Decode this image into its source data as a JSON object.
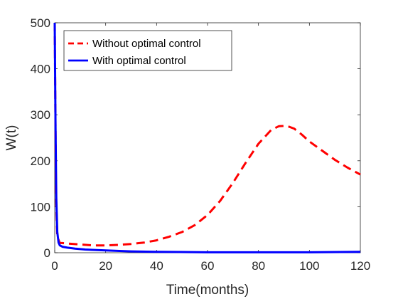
{
  "chart_data": {
    "type": "line",
    "title": "",
    "xlabel": "Time(months)",
    "ylabel": "W(t)",
    "xlim": [
      0,
      120
    ],
    "ylim": [
      0,
      500
    ],
    "xticks": [
      0,
      20,
      40,
      60,
      80,
      100,
      120
    ],
    "yticks": [
      0,
      100,
      200,
      300,
      400,
      500
    ],
    "grid": false,
    "legend_position": "top-left",
    "series": [
      {
        "name": "Without optimal control",
        "color": "#ff0000",
        "style": "dashed",
        "x": [
          0,
          0.5,
          1,
          2,
          3,
          5,
          10,
          15,
          20,
          25,
          30,
          35,
          40,
          45,
          50,
          55,
          60,
          65,
          70,
          75,
          80,
          85,
          88,
          91,
          94,
          97,
          100,
          105,
          110,
          115,
          120
        ],
        "y": [
          500,
          120,
          35,
          21,
          21,
          20,
          18,
          16,
          16,
          17,
          19,
          22,
          27,
          35,
          45,
          60,
          82,
          113,
          152,
          196,
          237,
          267,
          275,
          276,
          270,
          257,
          242,
          222,
          202,
          185,
          170
        ]
      },
      {
        "name": "With optimal control",
        "color": "#0000ff",
        "style": "solid",
        "x": [
          0,
          0.3,
          0.6,
          1,
          1.5,
          2,
          3,
          5,
          8,
          12,
          20,
          30,
          40,
          60,
          80,
          100,
          120
        ],
        "y": [
          500,
          280,
          120,
          45,
          22,
          16,
          13,
          11,
          9,
          7,
          5,
          3,
          2,
          1,
          1,
          1,
          2
        ]
      }
    ]
  }
}
